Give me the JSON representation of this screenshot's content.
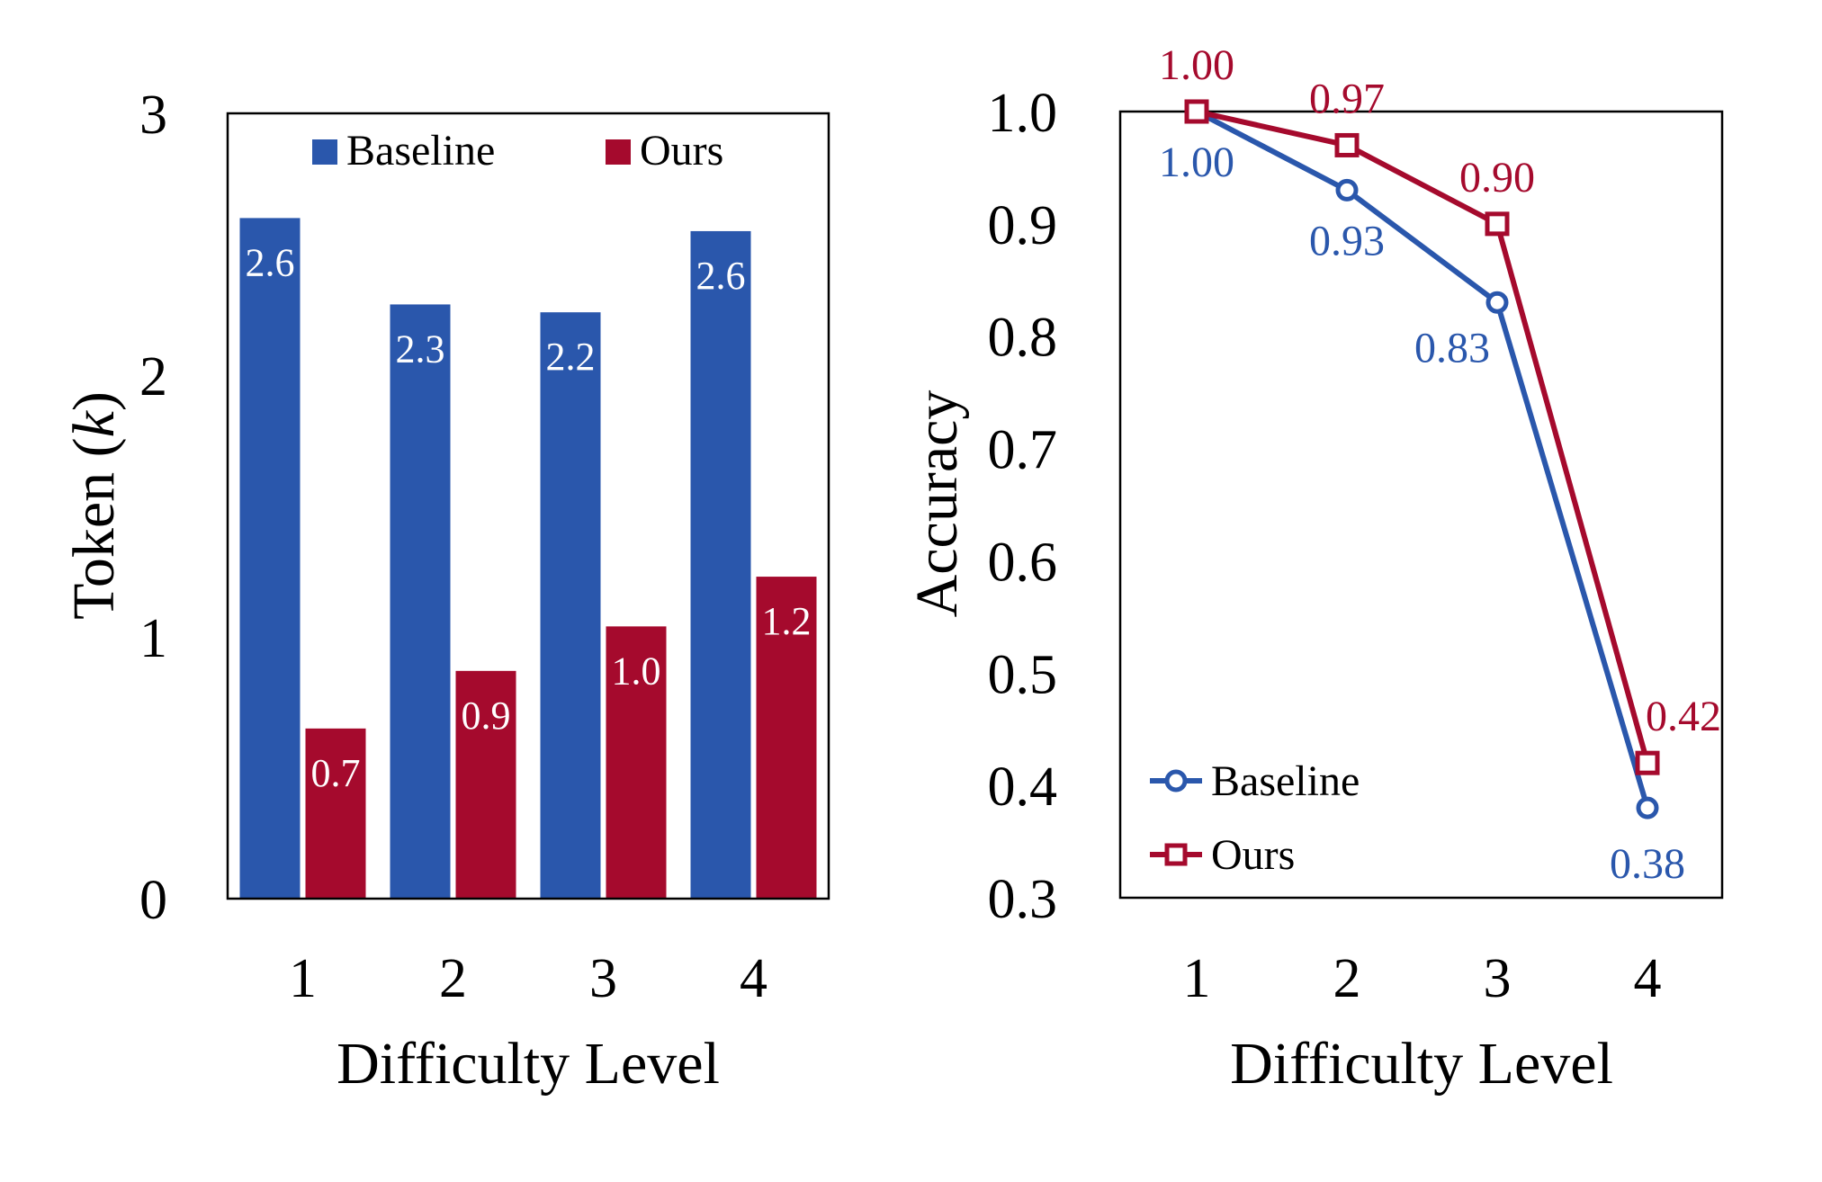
{
  "colors": {
    "baseline": "#2A57AC",
    "ours": "#A50A2D",
    "axis": "#000000",
    "value_label_on_bar": "#ffffff"
  },
  "chart_data": [
    {
      "type": "bar",
      "title": "",
      "xlabel": "Difficulty Level",
      "ylabel": "Token (",
      "ylabel_italic": "k",
      "ylabel_suffix": ")",
      "categories": [
        "1",
        "2",
        "3",
        "4"
      ],
      "ylim": [
        0,
        3
      ],
      "yticks": [
        0,
        1,
        2,
        3
      ],
      "ytick_labels": [
        "0",
        "1",
        "2",
        "3"
      ],
      "legend_position": "top",
      "grid": false,
      "series": [
        {
          "name": "Baseline",
          "color_key": "baseline",
          "values": [
            2.6,
            2.27,
            2.24,
            2.55
          ],
          "labels": [
            "2.6",
            "2.3",
            "2.2",
            "2.6"
          ]
        },
        {
          "name": "Ours",
          "color_key": "ours",
          "values": [
            0.65,
            0.87,
            1.04,
            1.23
          ],
          "labels": [
            "0.7",
            "0.9",
            "1.0",
            "1.2"
          ]
        }
      ]
    },
    {
      "type": "line",
      "title": "",
      "xlabel": "Difficulty Level",
      "ylabel": "Accuracy",
      "x": [
        "1",
        "2",
        "3",
        "4"
      ],
      "ylim": [
        0.3,
        1.0
      ],
      "yticks": [
        0.3,
        0.4,
        0.5,
        0.6,
        0.7,
        0.8,
        0.9,
        1.0
      ],
      "ytick_labels": [
        "0.3",
        "0.4",
        "0.5",
        "0.6",
        "0.7",
        "0.8",
        "0.9",
        "1.0"
      ],
      "legend_position": "bottom-left",
      "grid": false,
      "series": [
        {
          "name": "Baseline",
          "color_key": "baseline",
          "marker": "circle",
          "values": [
            1.0,
            0.93,
            0.83,
            0.38
          ],
          "labels": [
            "1.00",
            "0.93",
            "0.83",
            "0.38"
          ]
        },
        {
          "name": "Ours",
          "color_key": "ours",
          "marker": "square",
          "values": [
            1.0,
            0.97,
            0.9,
            0.42
          ],
          "labels": [
            "1.00",
            "0.97",
            "0.90",
            "0.42"
          ]
        }
      ]
    }
  ]
}
